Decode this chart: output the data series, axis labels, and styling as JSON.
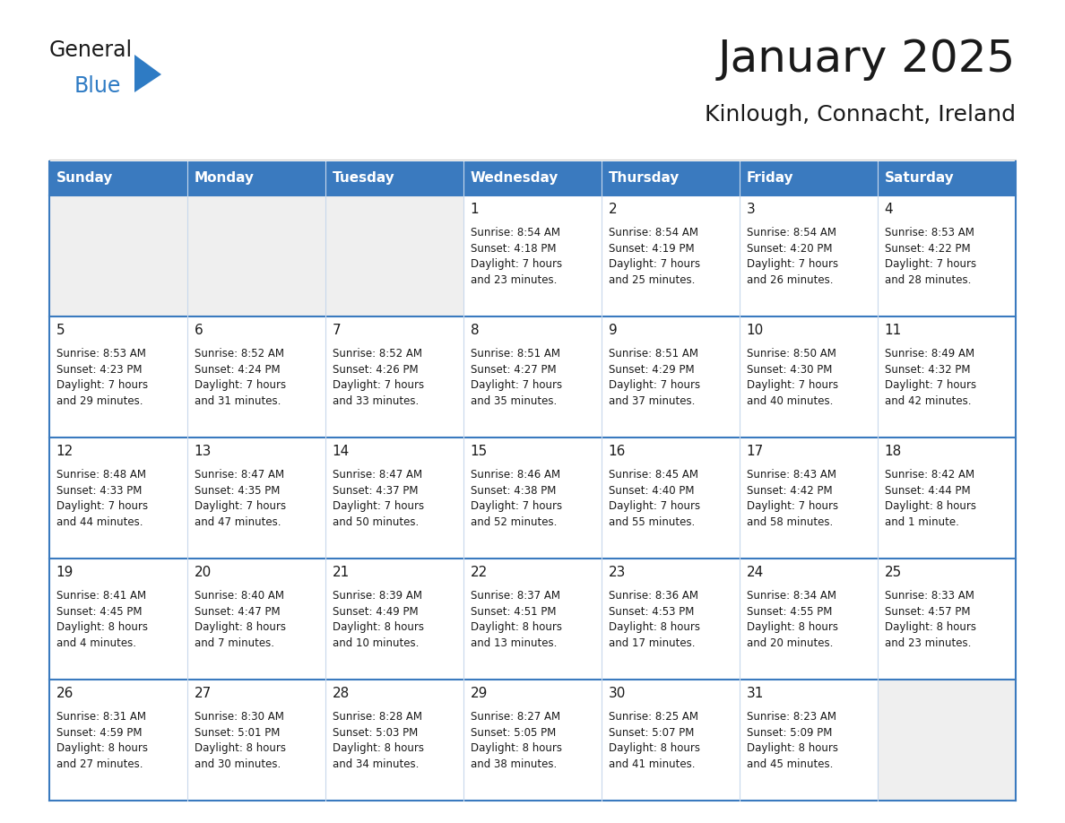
{
  "title": "January 2025",
  "subtitle": "Kinlough, Connacht, Ireland",
  "header_bg": "#3a7abf",
  "header_text": "#FFFFFF",
  "cell_bg_gray": "#EFEFEF",
  "cell_bg_white": "#FFFFFF",
  "cell_border": "#3a7abf",
  "cell_inner_border": "#c8d8ec",
  "day_headers": [
    "Sunday",
    "Monday",
    "Tuesday",
    "Wednesday",
    "Thursday",
    "Friday",
    "Saturday"
  ],
  "weeks": [
    [
      {
        "day": "",
        "text": ""
      },
      {
        "day": "",
        "text": ""
      },
      {
        "day": "",
        "text": ""
      },
      {
        "day": "1",
        "text": "Sunrise: 8:54 AM\nSunset: 4:18 PM\nDaylight: 7 hours\nand 23 minutes."
      },
      {
        "day": "2",
        "text": "Sunrise: 8:54 AM\nSunset: 4:19 PM\nDaylight: 7 hours\nand 25 minutes."
      },
      {
        "day": "3",
        "text": "Sunrise: 8:54 AM\nSunset: 4:20 PM\nDaylight: 7 hours\nand 26 minutes."
      },
      {
        "day": "4",
        "text": "Sunrise: 8:53 AM\nSunset: 4:22 PM\nDaylight: 7 hours\nand 28 minutes."
      }
    ],
    [
      {
        "day": "5",
        "text": "Sunrise: 8:53 AM\nSunset: 4:23 PM\nDaylight: 7 hours\nand 29 minutes."
      },
      {
        "day": "6",
        "text": "Sunrise: 8:52 AM\nSunset: 4:24 PM\nDaylight: 7 hours\nand 31 minutes."
      },
      {
        "day": "7",
        "text": "Sunrise: 8:52 AM\nSunset: 4:26 PM\nDaylight: 7 hours\nand 33 minutes."
      },
      {
        "day": "8",
        "text": "Sunrise: 8:51 AM\nSunset: 4:27 PM\nDaylight: 7 hours\nand 35 minutes."
      },
      {
        "day": "9",
        "text": "Sunrise: 8:51 AM\nSunset: 4:29 PM\nDaylight: 7 hours\nand 37 minutes."
      },
      {
        "day": "10",
        "text": "Sunrise: 8:50 AM\nSunset: 4:30 PM\nDaylight: 7 hours\nand 40 minutes."
      },
      {
        "day": "11",
        "text": "Sunrise: 8:49 AM\nSunset: 4:32 PM\nDaylight: 7 hours\nand 42 minutes."
      }
    ],
    [
      {
        "day": "12",
        "text": "Sunrise: 8:48 AM\nSunset: 4:33 PM\nDaylight: 7 hours\nand 44 minutes."
      },
      {
        "day": "13",
        "text": "Sunrise: 8:47 AM\nSunset: 4:35 PM\nDaylight: 7 hours\nand 47 minutes."
      },
      {
        "day": "14",
        "text": "Sunrise: 8:47 AM\nSunset: 4:37 PM\nDaylight: 7 hours\nand 50 minutes."
      },
      {
        "day": "15",
        "text": "Sunrise: 8:46 AM\nSunset: 4:38 PM\nDaylight: 7 hours\nand 52 minutes."
      },
      {
        "day": "16",
        "text": "Sunrise: 8:45 AM\nSunset: 4:40 PM\nDaylight: 7 hours\nand 55 minutes."
      },
      {
        "day": "17",
        "text": "Sunrise: 8:43 AM\nSunset: 4:42 PM\nDaylight: 7 hours\nand 58 minutes."
      },
      {
        "day": "18",
        "text": "Sunrise: 8:42 AM\nSunset: 4:44 PM\nDaylight: 8 hours\nand 1 minute."
      }
    ],
    [
      {
        "day": "19",
        "text": "Sunrise: 8:41 AM\nSunset: 4:45 PM\nDaylight: 8 hours\nand 4 minutes."
      },
      {
        "day": "20",
        "text": "Sunrise: 8:40 AM\nSunset: 4:47 PM\nDaylight: 8 hours\nand 7 minutes."
      },
      {
        "day": "21",
        "text": "Sunrise: 8:39 AM\nSunset: 4:49 PM\nDaylight: 8 hours\nand 10 minutes."
      },
      {
        "day": "22",
        "text": "Sunrise: 8:37 AM\nSunset: 4:51 PM\nDaylight: 8 hours\nand 13 minutes."
      },
      {
        "day": "23",
        "text": "Sunrise: 8:36 AM\nSunset: 4:53 PM\nDaylight: 8 hours\nand 17 minutes."
      },
      {
        "day": "24",
        "text": "Sunrise: 8:34 AM\nSunset: 4:55 PM\nDaylight: 8 hours\nand 20 minutes."
      },
      {
        "day": "25",
        "text": "Sunrise: 8:33 AM\nSunset: 4:57 PM\nDaylight: 8 hours\nand 23 minutes."
      }
    ],
    [
      {
        "day": "26",
        "text": "Sunrise: 8:31 AM\nSunset: 4:59 PM\nDaylight: 8 hours\nand 27 minutes."
      },
      {
        "day": "27",
        "text": "Sunrise: 8:30 AM\nSunset: 5:01 PM\nDaylight: 8 hours\nand 30 minutes."
      },
      {
        "day": "28",
        "text": "Sunrise: 8:28 AM\nSunset: 5:03 PM\nDaylight: 8 hours\nand 34 minutes."
      },
      {
        "day": "29",
        "text": "Sunrise: 8:27 AM\nSunset: 5:05 PM\nDaylight: 8 hours\nand 38 minutes."
      },
      {
        "day": "30",
        "text": "Sunrise: 8:25 AM\nSunset: 5:07 PM\nDaylight: 8 hours\nand 41 minutes."
      },
      {
        "day": "31",
        "text": "Sunrise: 8:23 AM\nSunset: 5:09 PM\nDaylight: 8 hours\nand 45 minutes."
      },
      {
        "day": "",
        "text": ""
      }
    ]
  ],
  "logo_general_color": "#1a1a1a",
  "logo_blue_color": "#2e7bc4",
  "logo_triangle_color": "#2e7bc4",
  "title_fontsize": 36,
  "subtitle_fontsize": 18,
  "header_fontsize": 11,
  "day_num_fontsize": 11,
  "cell_text_fontsize": 8.5
}
